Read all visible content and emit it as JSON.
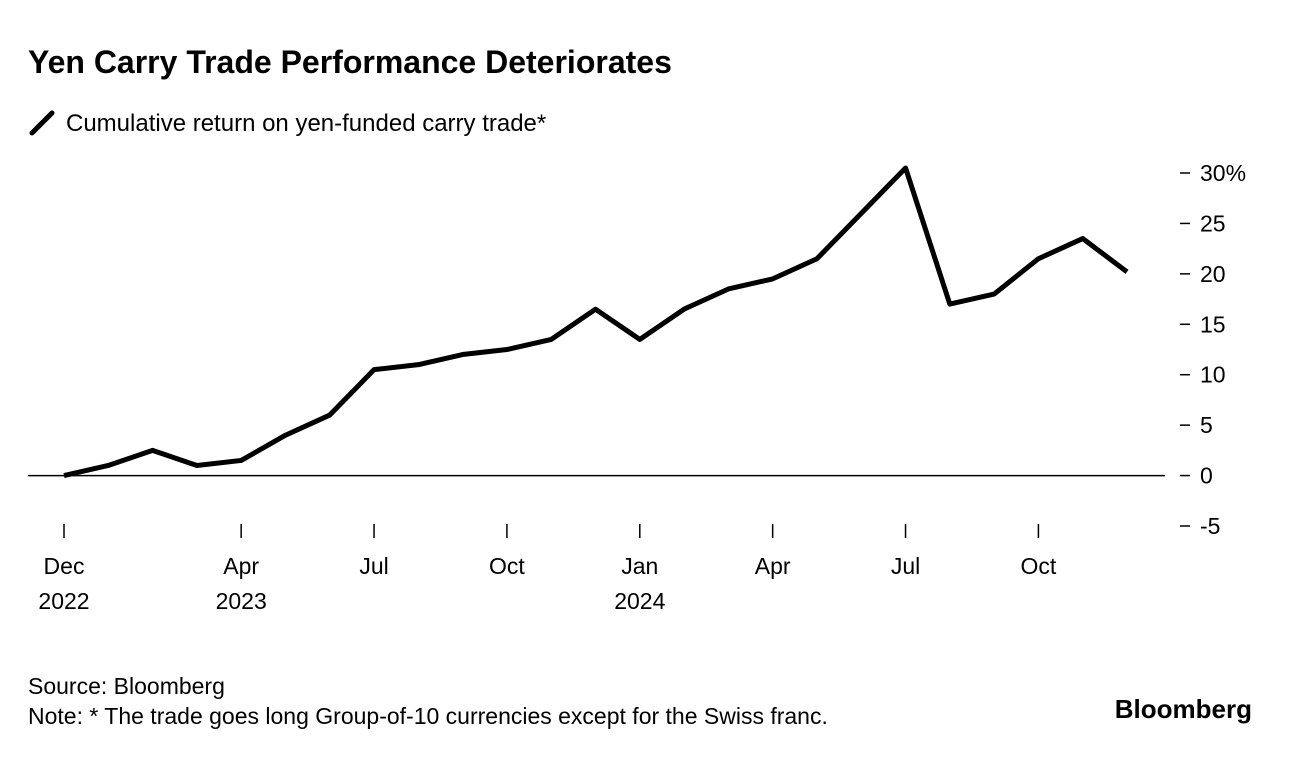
{
  "chart_data": {
    "type": "line",
    "title": "Yen Carry Trade Performance Deteriorates",
    "series": [
      {
        "name": "Cumulative return on yen-funded carry trade*",
        "color": "#000000",
        "values": [
          0,
          1,
          2.5,
          1,
          1.5,
          4,
          6,
          10.5,
          11,
          12,
          12.5,
          13.5,
          16.5,
          13.5,
          16.5,
          18.5,
          19.5,
          21.5,
          26,
          30.5,
          17,
          18,
          21.5,
          23.5,
          20.2
        ]
      }
    ],
    "x": [
      "2022-12",
      "2023-01",
      "2023-02",
      "2023-03",
      "2023-04",
      "2023-05",
      "2023-06",
      "2023-07",
      "2023-08",
      "2023-09",
      "2023-10",
      "2023-11",
      "2023-12",
      "2024-01",
      "2024-02",
      "2024-03",
      "2024-04",
      "2024-05",
      "2024-06",
      "2024-07",
      "2024-08",
      "2024-09",
      "2024-10",
      "2024-11",
      "2024-12"
    ],
    "xticks": [
      {
        "value": "2022-12",
        "label": [
          "Dec",
          "2022"
        ]
      },
      {
        "value": "2023-04",
        "label": [
          "Apr",
          "2023"
        ]
      },
      {
        "value": "2023-07",
        "label": [
          "Jul"
        ]
      },
      {
        "value": "2023-10",
        "label": [
          "Oct"
        ]
      },
      {
        "value": "2024-01",
        "label": [
          "Jan",
          "2024"
        ]
      },
      {
        "value": "2024-04",
        "label": [
          "Apr"
        ]
      },
      {
        "value": "2024-07",
        "label": [
          "Jul"
        ]
      },
      {
        "value": "2024-10",
        "label": [
          "Oct"
        ]
      }
    ],
    "ylim": [
      -5,
      30
    ],
    "yticks": [
      {
        "value": 30,
        "label": "30%"
      },
      25,
      20,
      15,
      10,
      5,
      0,
      -5
    ],
    "zero_line": true,
    "source": "Source: Bloomberg",
    "note": "Note: * The trade goes long Group-of-10 currencies except for the Swiss franc.",
    "logo": "Bloomberg"
  }
}
